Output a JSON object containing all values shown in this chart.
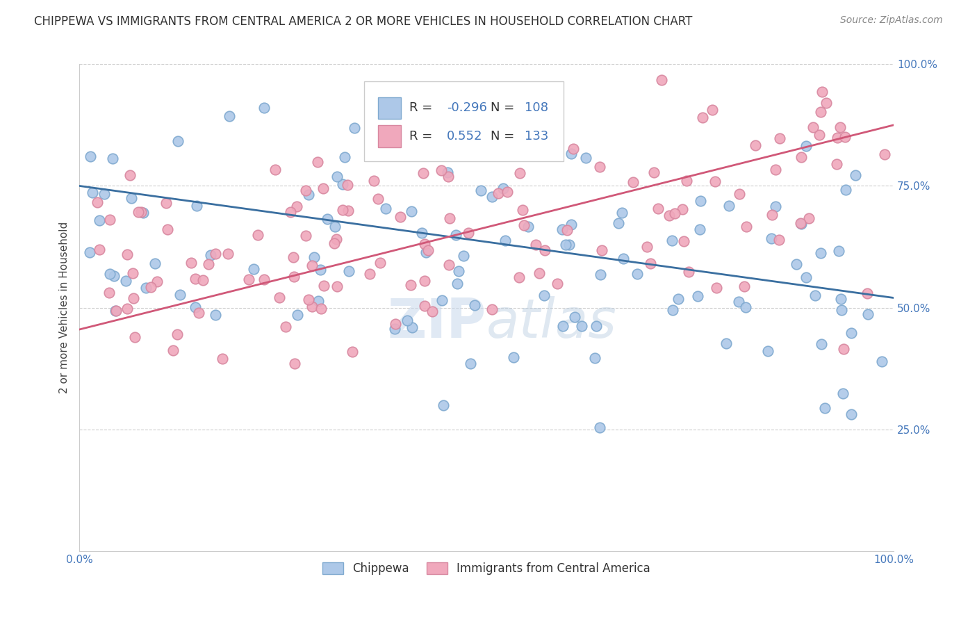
{
  "title": "CHIPPEWA VS IMMIGRANTS FROM CENTRAL AMERICA 2 OR MORE VEHICLES IN HOUSEHOLD CORRELATION CHART",
  "source": "Source: ZipAtlas.com",
  "ylabel": "2 or more Vehicles in Household",
  "legend_label1": "Chippewa",
  "legend_label2": "Immigrants from Central America",
  "R1": -0.296,
  "N1": 108,
  "R2": 0.552,
  "N2": 133,
  "blue_color": "#adc8e8",
  "pink_color": "#f0a8bc",
  "blue_line_color": "#3a6fa0",
  "pink_line_color": "#d05878",
  "blue_marker_edge": "#80aad0",
  "pink_marker_edge": "#d888a0",
  "title_fontsize": 12,
  "source_fontsize": 10,
  "axis_label_fontsize": 11,
  "tick_label_fontsize": 11,
  "background_color": "#ffffff",
  "xlim": [
    0,
    1
  ],
  "ylim": [
    0,
    1
  ],
  "blue_line_start_y": 0.75,
  "blue_line_end_y": 0.52,
  "pink_line_start_y": 0.455,
  "pink_line_end_y": 0.875,
  "seed_blue": 12,
  "seed_pink": 77,
  "watermark": "ZIPAtlas"
}
